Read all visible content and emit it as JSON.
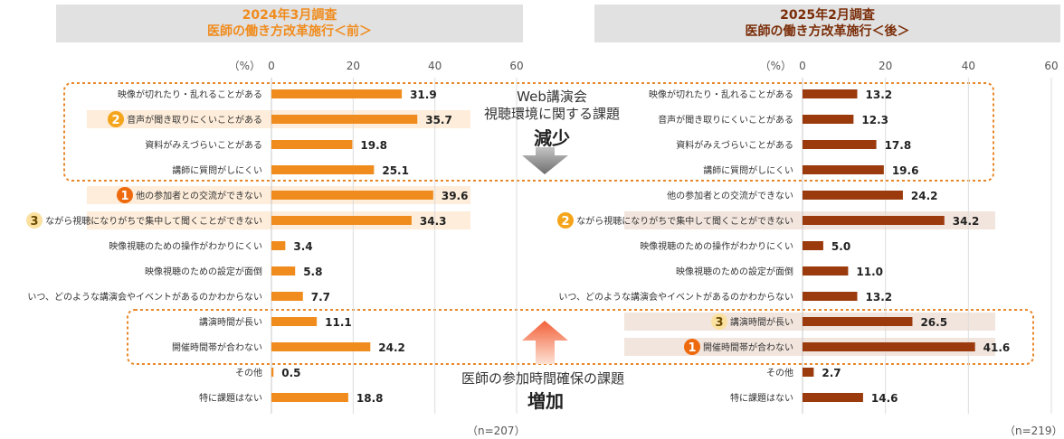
{
  "headers": {
    "left": {
      "line1": "2024年3月調査",
      "line2": "医師の働き方改革施行＜前＞"
    },
    "right": {
      "line1": "2025年2月調査",
      "line2": "医師の働き方改革施行＜後＞"
    }
  },
  "annotations": {
    "top_line1": "Web講演会",
    "top_line2": "視聴環境に関する課題",
    "top_strong": "減少",
    "bottom_line1": "医師の参加時間確保の課題",
    "bottom_strong": "増加"
  },
  "colors": {
    "left_bar": "#f08c1e",
    "right_bar": "#9b3a0c",
    "rank1": "#ee6a0e",
    "rank2": "#f5a51c",
    "rank3": "#fbe1a0",
    "dotted_box": "#e8872a",
    "highlight_left": "#fde7cd",
    "highlight_right": "#eddcd2"
  },
  "chart_data": [
    {
      "type": "bar",
      "orientation": "horizontal",
      "unit_label": "（%）",
      "xlim": [
        0,
        60
      ],
      "xticks": [
        0,
        20,
        40,
        60
      ],
      "n_label": "（n=207）",
      "categories": [
        "映像が切れたり・乱れることがある",
        "音声が聞き取りにくいことがある",
        "資料がみえづらいことがある",
        "講師に質問がしにくい",
        "他の参加者との交流ができない",
        "ながら視聴になりがちで集中して聞くことができない",
        "映像視聴のための操作がわかりにくい",
        "映像視聴のための設定が面倒",
        "いつ、どのような講演会やイベントがあるのかわからない",
        "講演時間が長い",
        "開催時間帯が合わない",
        "その他",
        "特に課題はない"
      ],
      "values": [
        31.9,
        35.7,
        19.8,
        25.1,
        39.6,
        34.3,
        3.4,
        5.8,
        7.7,
        11.1,
        24.2,
        0.5,
        18.8
      ],
      "value_labels": [
        "31.9",
        "35.7",
        "19.8",
        "25.1",
        "39.6",
        "34.3",
        "3.4",
        "5.8",
        "7.7",
        "11.1",
        "24.2",
        "0.5",
        "18.8"
      ],
      "ranks": [
        {
          "index": 4,
          "rank": "1"
        },
        {
          "index": 1,
          "rank": "2"
        },
        {
          "index": 5,
          "rank": "3"
        }
      ]
    },
    {
      "type": "bar",
      "orientation": "horizontal",
      "unit_label": "（%）",
      "xlim": [
        0,
        60
      ],
      "xticks": [
        0,
        20,
        40,
        60
      ],
      "n_label": "（n=219）",
      "categories": [
        "映像が切れたり・乱れることがある",
        "音声が聞き取りにくいことがある",
        "資料がみえづらいことがある",
        "講師に質問がしにくい",
        "他の参加者との交流ができない",
        "ながら視聴になりがちで集中して聞くことができない",
        "映像視聴のための操作がわかりにくい",
        "映像視聴のための設定が面倒",
        "いつ、どのような講演会やイベントがあるのかわからない",
        "講演時間が長い",
        "開催時間帯が合わない",
        "その他",
        "特に課題はない"
      ],
      "values": [
        13.2,
        12.3,
        17.8,
        19.6,
        24.2,
        34.2,
        5.0,
        11.0,
        13.2,
        26.5,
        41.6,
        2.7,
        14.6
      ],
      "value_labels": [
        "13.2",
        "12.3",
        "17.8",
        "19.6",
        "24.2",
        "34.2",
        "5.0",
        "11.0",
        "13.2",
        "26.5",
        "41.6",
        "2.7",
        "14.6"
      ],
      "ranks": [
        {
          "index": 10,
          "rank": "1"
        },
        {
          "index": 5,
          "rank": "2"
        },
        {
          "index": 9,
          "rank": "3"
        }
      ]
    }
  ]
}
